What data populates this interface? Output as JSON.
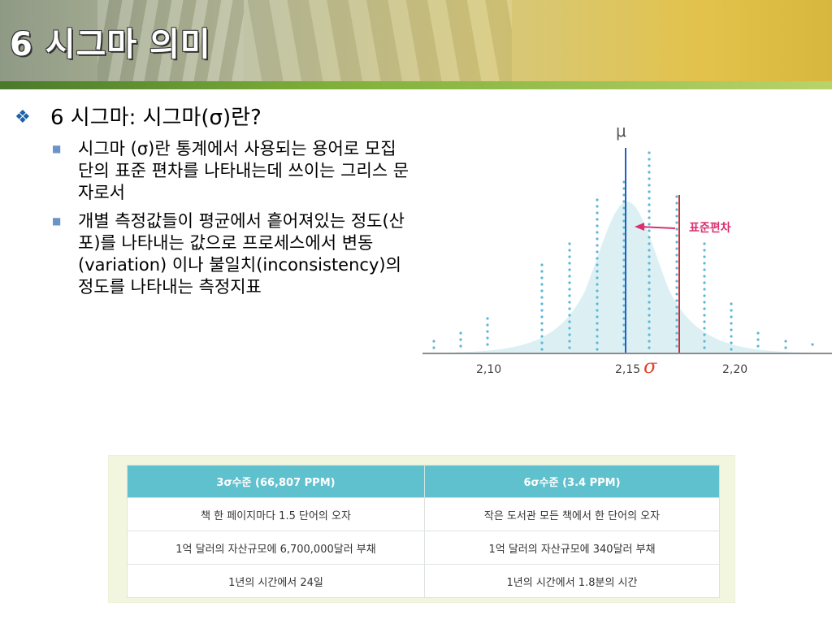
{
  "slide": {
    "title": "6 시그마 의미"
  },
  "bullets": {
    "heading": "6 시그마: 시그마(σ)란?",
    "items": [
      "시그마 (σ)란 통계에서 사용되는 용어로 모집단의 표준 편차를 나타내는데 쓰이는 그리스 문자로서",
      "개별 측정값들이 평균에서 흩어져있는 정도(산포)를 나타내는 값으로 프로세스에서 변동(variation) 이나 불일치(inconsistency)의 정도를 나타내는 측정지표"
    ]
  },
  "figure": {
    "mu_label": "μ",
    "std_label": "표준편차",
    "sigma_label": "σ",
    "x_ticks": [
      "2,10",
      "2,15",
      "2,20"
    ],
    "colors": {
      "curve_fill": "#dcf0f4",
      "mean_line": "#1f5fc9",
      "sigma_line": "#d12a3a",
      "dots": "#5cb8d8"
    }
  },
  "table": {
    "headers": [
      "3σ수준 (66,807 PPM)",
      "6σ수준 (3.4 PPM)"
    ],
    "rows": [
      [
        "책 한 페이지마다 1.5 단어의 오자",
        "작은 도서관 모든 책에서 한 단어의 오자"
      ],
      [
        "1억 달러의 자산규모에 6,700,000달러 부채",
        "1억 달러의 자산규모에 340달러 부채"
      ],
      [
        "1년의 시간에서 24일",
        "1년의 시간에서 1.8분의 시간"
      ]
    ],
    "colors": {
      "header_bg": "#5fc1ce",
      "panel_bg": "#f3f6df"
    }
  }
}
